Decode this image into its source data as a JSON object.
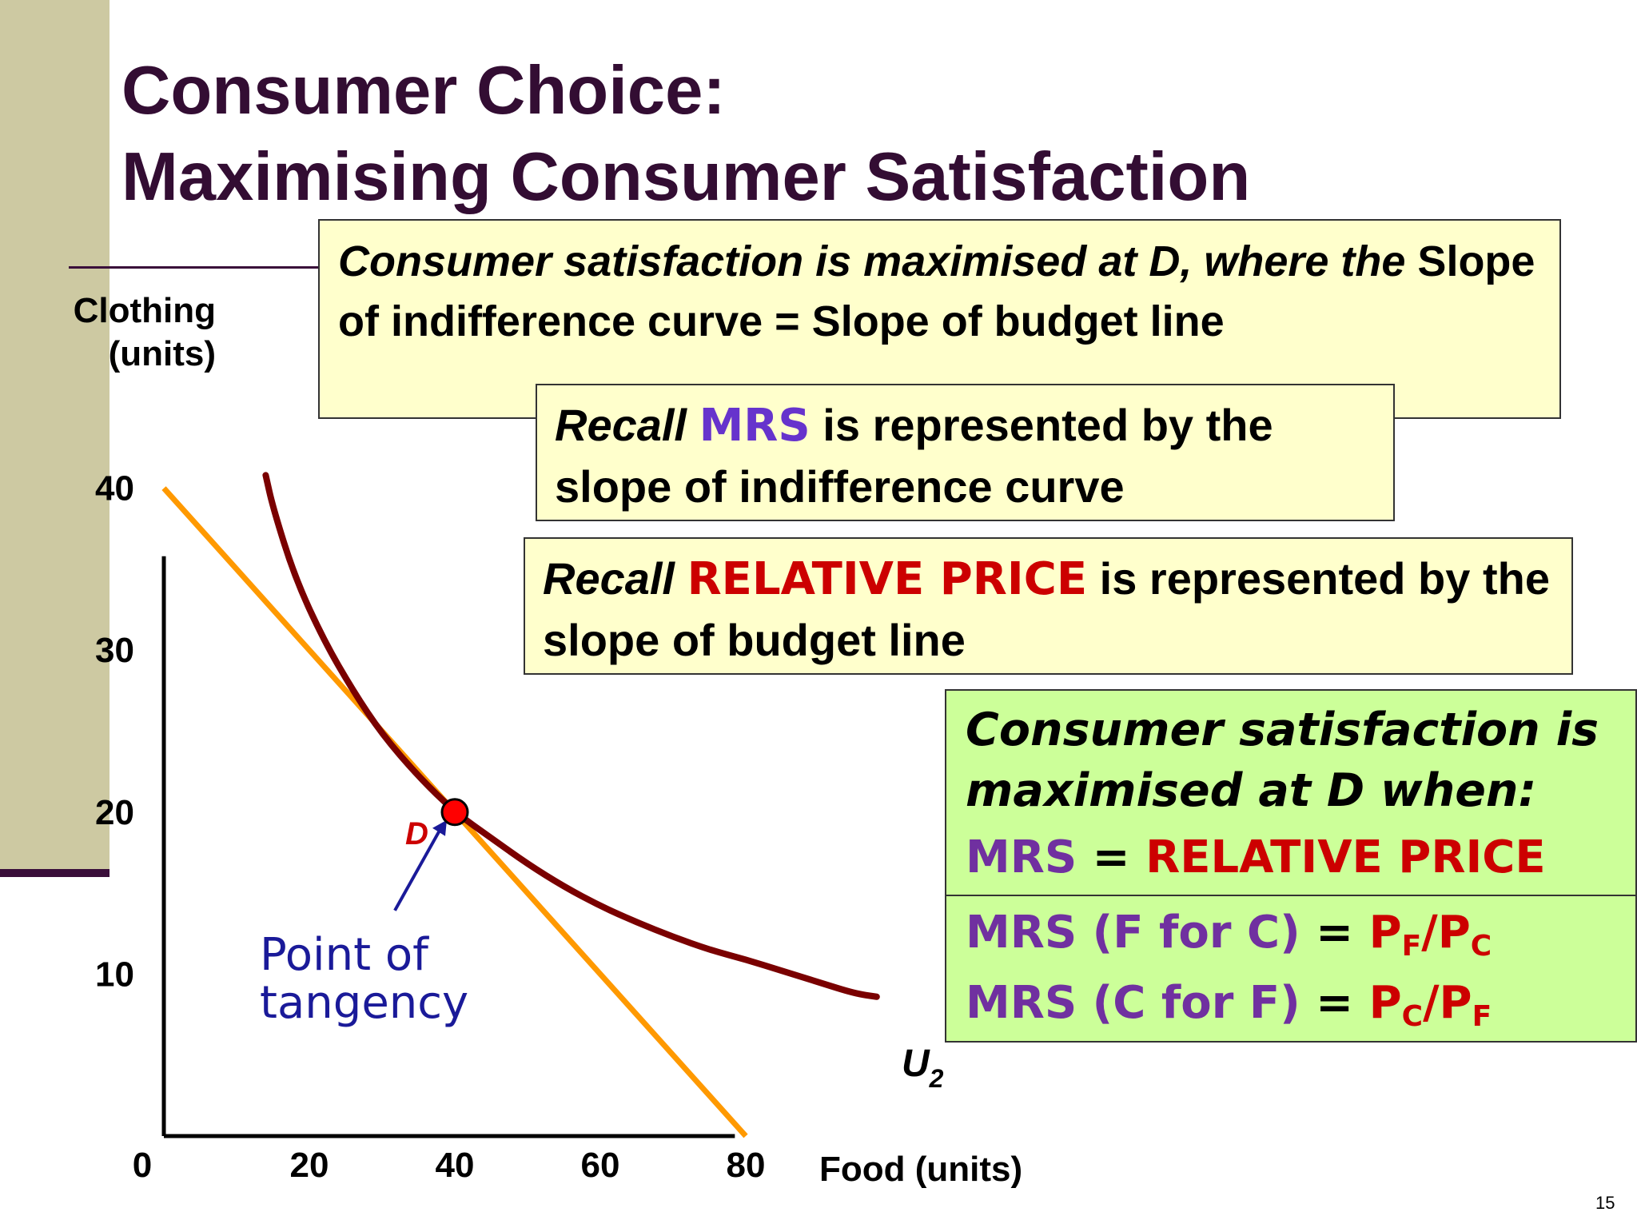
{
  "title": {
    "line1": "Consumer Choice:",
    "line2": "Maximising Consumer Satisfaction"
  },
  "box1": {
    "intro_italic": "Consumer satisfaction is maximised at D, where the",
    "rest": " Slope of indifference curve = Slope of budget line"
  },
  "box2": {
    "recall": "Recall",
    "mrs": "MRS",
    "rest": " is represented by the slope of indifference curve"
  },
  "box3": {
    "recall": "Recall",
    "rp": "RELATIVE PRICE",
    "rest": " is represented by the slope of budget line"
  },
  "green_box": {
    "line1": "Consumer satisfaction is",
    "line2": "maximised at D when:",
    "line3_mrs": "MRS",
    "line3_eq": " = ",
    "line3_rp": "RELATIVE PRICE",
    "line4_mrs": "MRS (F for C)",
    "line4_eq": " = ",
    "line4_p1": "P",
    "line4_s1": "F",
    "line4_slash": "/P",
    "line4_s2": "C",
    "line5_mrs": "MRS (C for F)",
    "line5_eq": " = ",
    "line5_p1": "P",
    "line5_s1": "C",
    "line5_slash": "/P",
    "line5_s2": "F"
  },
  "page_number": "15",
  "chart_data": {
    "type": "line",
    "xlabel": "Food (units)",
    "ylabel_line1": "Clothing",
    "ylabel_line2": "(units)",
    "xlim": [
      0,
      100
    ],
    "ylim": [
      0,
      45
    ],
    "x_ticks": [
      "0",
      "20",
      "40",
      "60",
      "80"
    ],
    "y_ticks": [
      "10",
      "20",
      "30",
      "40"
    ],
    "grid": false,
    "series": [
      {
        "name": "Budget line",
        "color": "#ff9900",
        "x": [
          0,
          80
        ],
        "y": [
          40,
          0
        ]
      },
      {
        "name": "U2",
        "color": "#7a0000",
        "x": [
          14,
          15,
          18,
          22,
          26,
          30,
          35,
          40,
          45,
          50,
          55,
          60,
          65,
          70,
          75,
          80,
          85,
          90,
          95,
          98
        ],
        "y": [
          40.8,
          38.8,
          34.5,
          30.6,
          27.5,
          24.8,
          22.2,
          20,
          18.4,
          16.8,
          15.4,
          14.2,
          13.2,
          12.3,
          11.5,
          10.9,
          10.2,
          9.5,
          8.8,
          8.6
        ]
      }
    ],
    "points": [
      {
        "label": "D",
        "x": 40,
        "y": 20,
        "color": "#ff0000"
      }
    ],
    "curve_label": "U",
    "curve_label_sub": "2",
    "annotation_line1": "Point of",
    "annotation_line2": "tangency"
  }
}
